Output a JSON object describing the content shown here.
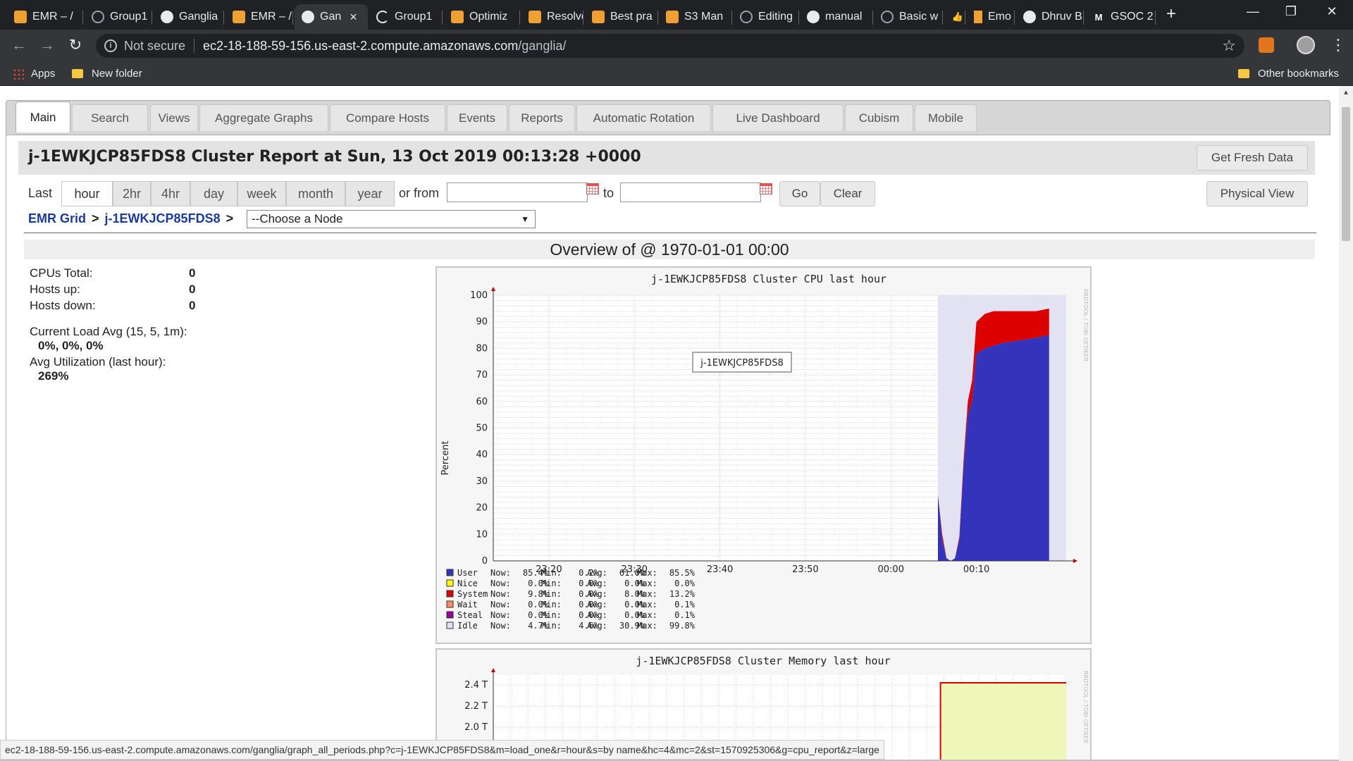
{
  "browser": {
    "tabs": [
      {
        "title": "EMR – /",
        "icon": "aws-icon"
      },
      {
        "title": "Group1",
        "icon": "github-icon"
      },
      {
        "title": "Ganglia",
        "icon": "globe-icon"
      },
      {
        "title": "EMR – /",
        "icon": "aws-icon"
      },
      {
        "title": "Gan",
        "icon": "globe-icon",
        "active": true
      },
      {
        "title": "Group1",
        "icon": "loading-icon"
      },
      {
        "title": "Optimiz",
        "icon": "aws-icon"
      },
      {
        "title": "Resolve",
        "icon": "aws-icon"
      },
      {
        "title": "Best pra",
        "icon": "aws-icon"
      },
      {
        "title": "S3 Man",
        "icon": "aws-icon"
      },
      {
        "title": "Editing",
        "icon": "github-icon"
      },
      {
        "title": "manual",
        "icon": "globe-icon"
      },
      {
        "title": "Basic w",
        "icon": "github-icon"
      },
      {
        "title": "",
        "icon": "thumbs-up-icon"
      },
      {
        "title": "Emo",
        "icon": "gift-icon"
      },
      {
        "title": "Dhruv B",
        "icon": "globe-icon"
      },
      {
        "title": "GSOC 2",
        "icon": "gmail-icon"
      }
    ],
    "url_security": "Not secure",
    "url_host": "ec2-18-188-59-156.us-east-2.compute.amazonaws.com",
    "url_path": "/ganglia/",
    "bookmarks": {
      "apps": "Apps",
      "folder": "New folder",
      "other": "Other bookmarks"
    },
    "status_url": "ec2-18-188-59-156.us-east-2.compute.amazonaws.com/ganglia/graph_all_periods.php?c=j-1EWKJCP85FDS8&m=load_one&r=hour&s=by name&hc=4&mc=2&st=1570925306&g=cpu_report&z=large"
  },
  "ganglia": {
    "tabs": [
      "Main",
      "Search",
      "Views",
      "Aggregate Graphs",
      "Compare Hosts",
      "Events",
      "Reports",
      "Automatic Rotation",
      "Live Dashboard",
      "Cubism",
      "Mobile"
    ],
    "active_tab": "Main",
    "report_title": "j-1EWKJCP85FDS8 Cluster Report at Sun, 13 Oct 2019 00:13:28 +0000",
    "get_fresh_data": "Get Fresh Data",
    "physical_view": "Physical View",
    "range_label": "Last",
    "ranges": [
      "hour",
      "2hr",
      "4hr",
      "day",
      "week",
      "month",
      "year"
    ],
    "selected_range": "hour",
    "or_from": "or from",
    "to": "to",
    "go": "Go",
    "clear": "Clear",
    "breadcrumb": {
      "grid": "EMR Grid",
      "cluster": "j-1EWKJCP85FDS8",
      "sep": ">"
    },
    "node_select": "--Choose a Node",
    "overview": "Overview of @ 1970-01-01 00:00",
    "stats": {
      "cpus_label": "CPUs Total:",
      "cpus": "0",
      "hosts_up_label": "Hosts up:",
      "hosts_up": "0",
      "hosts_down_label": "Hosts down:",
      "hosts_down": "0",
      "load_label": "Current Load Avg (15, 5, 1m):",
      "load": "0%, 0%, 0%",
      "util_label": "Avg Utilization (last hour):",
      "util": "269%"
    }
  },
  "cpu_graph": {
    "title": "j-1EWKJCP85FDS8 Cluster CPU last hour",
    "ylabel": "Percent",
    "yticks": [
      "0",
      "10",
      "20",
      "30",
      "40",
      "50",
      "60",
      "70",
      "80",
      "90",
      "100"
    ],
    "xticks": [
      "23:20",
      "23:30",
      "23:40",
      "23:50",
      "00:00",
      "00:10"
    ],
    "tooltip": "j-1EWKJCP85FDS8",
    "side_label": "RRDTOOL / TOBI OETIKER",
    "legend": [
      {
        "name": "User",
        "now": "85.4%",
        "min": "0.2%",
        "avg": "61.0%",
        "max": "85.5%",
        "color": "#3333bb"
      },
      {
        "name": "Nice",
        "now": "0.0%",
        "min": "0.0%",
        "avg": "0.0%",
        "max": "0.0%",
        "color": "#ffff00"
      },
      {
        "name": "System",
        "now": "9.8%",
        "min": "0.0%",
        "avg": "8.0%",
        "max": "13.2%",
        "color": "#dd0000"
      },
      {
        "name": "Wait",
        "now": "0.0%",
        "min": "0.0%",
        "avg": "0.0%",
        "max": "0.1%",
        "color": "#ff8a60"
      },
      {
        "name": "Steal",
        "now": "0.0%",
        "min": "0.0%",
        "avg": "0.0%",
        "max": "0.1%",
        "color": "#990099"
      },
      {
        "name": "Idle",
        "now": "4.7%",
        "min": "4.6%",
        "avg": "30.9%",
        "max": "99.8%",
        "color": "#e2e2f2"
      }
    ]
  },
  "memory_graph": {
    "title": "j-1EWKJCP85FDS8 Cluster Memory last hour",
    "yticks": [
      "2.4 T",
      "2.2 T",
      "2.0 T"
    ],
    "side_label": "RRDTOOL / TOBI OETIKER"
  },
  "chart_data": [
    {
      "type": "area",
      "title": "j-1EWKJCP85FDS8 Cluster CPU last hour",
      "ylabel": "Percent",
      "ylim": [
        0,
        100
      ],
      "x_ticks": [
        "23:20",
        "23:30",
        "23:40",
        "23:50",
        "00:00",
        "00:10"
      ],
      "x_minutes_from_2320": [
        -5,
        45.5,
        46,
        46.5,
        47,
        47.5,
        48,
        48.5,
        49,
        49.5,
        50,
        51,
        52,
        53,
        55,
        57,
        58.5
      ],
      "series": [
        {
          "name": "User",
          "values": [
            0,
            25,
            8,
            1,
            0,
            1,
            8,
            35,
            55,
            60,
            78,
            80,
            81,
            82,
            83,
            84,
            85
          ]
        },
        {
          "name": "System",
          "values": [
            0,
            0,
            2,
            0,
            0,
            0,
            1,
            3,
            5,
            8,
            12,
            13,
            13,
            12,
            11,
            10,
            10
          ]
        }
      ],
      "idle_region_start": 45.5,
      "grid": true
    },
    {
      "type": "area",
      "title": "j-1EWKJCP85FDS8 Cluster Memory last hour",
      "y_ticks": [
        "2.0 T",
        "2.2 T",
        "2.4 T"
      ],
      "series": [
        {
          "name": "",
          "values": [
            2.42
          ]
        }
      ],
      "step_start_minute": 45.8
    }
  ]
}
